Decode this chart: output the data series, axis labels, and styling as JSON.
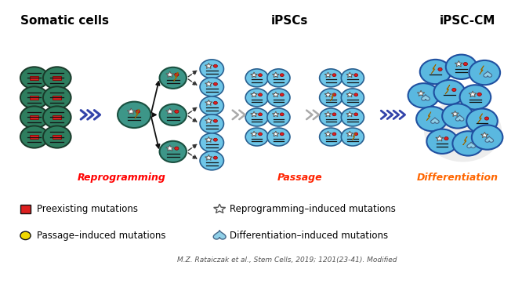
{
  "bg_color": "#ffffff",
  "somatic_label": "Somatic cells",
  "ipscs_label": "iPSCs",
  "ipsc_cm_label": "iPSC-CM",
  "reprogramming_label": "Reprogramming",
  "passage_label": "Passage",
  "differentiation_label": "Differentiation",
  "somatic_color": "#2e7d5e",
  "somatic_edge": "#1a3a2a",
  "inter_color": "#3d9688",
  "inter_edge": "#1a5040",
  "ipsc_color": "#6ec6e8",
  "ipsc_edge": "#2a6090",
  "ipsc_cm_color": "#5ab8e0",
  "ipsc_cm_edge": "#2050a0",
  "red_color": "#dd2020",
  "yellow_color": "#f0d800",
  "lightning_color": "#f0d020",
  "star_color": "#ffffff",
  "heart_color": "#90d0e8",
  "arrow_blue": "#3344aa",
  "arrow_gray": "#999999",
  "label_reprog_color": "#ff0000",
  "label_passage_color": "#ff2200",
  "label_diff_color": "#ff6600",
  "citation": "M.Z. Rataiczak et al., Stem Cells, 2019; 1201(23-41). Modified",
  "fig_width": 6.66,
  "fig_height": 3.71,
  "dpi": 100
}
